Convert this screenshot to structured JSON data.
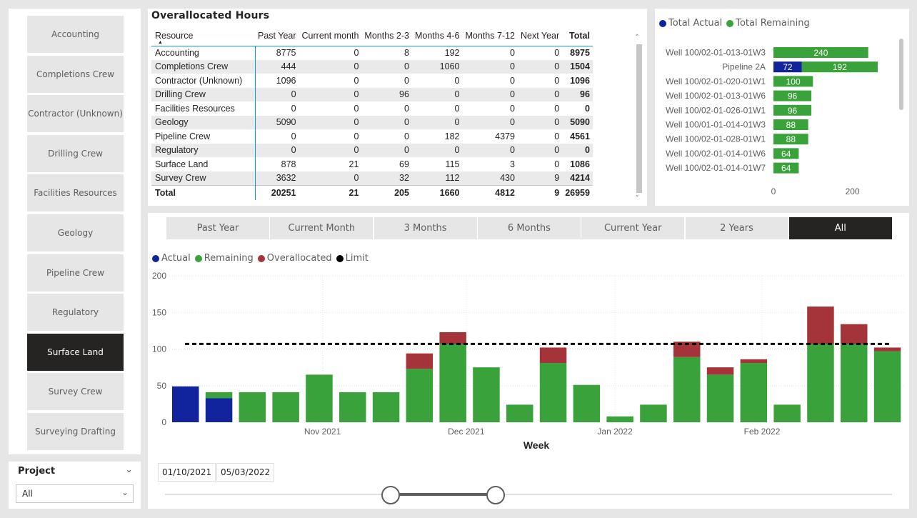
{
  "slicer": {
    "items": [
      "Accounting",
      "Completions Crew",
      "Contractor (Unknown)",
      "Drilling Crew",
      "Facilities Resources",
      "Geology",
      "Pipeline Crew",
      "Regulatory",
      "Surface Land",
      "Survey Crew",
      "Surveying Drafting"
    ],
    "selected": "Surface Land"
  },
  "project": {
    "title": "Project",
    "value": "All",
    "chevron": "chevron-down-icon"
  },
  "table": {
    "title": "Overallocated Hours",
    "columns": [
      "Resource",
      "Past Year",
      "Current month",
      "Months 2-3",
      "Months 4-6",
      "Months 7-12",
      "Next Year",
      "Total"
    ],
    "rows": [
      [
        "Accounting",
        "8775",
        "0",
        "8",
        "192",
        "0",
        "0",
        "8975"
      ],
      [
        "Completions Crew",
        "444",
        "0",
        "0",
        "1060",
        "0",
        "0",
        "1504"
      ],
      [
        "Contractor (Unknown)",
        "1096",
        "0",
        "0",
        "0",
        "0",
        "0",
        "1096"
      ],
      [
        "Drilling Crew",
        "0",
        "0",
        "96",
        "0",
        "0",
        "0",
        "96"
      ],
      [
        "Facilities Resources",
        "0",
        "0",
        "0",
        "0",
        "0",
        "0",
        "0"
      ],
      [
        "Geology",
        "5090",
        "0",
        "0",
        "0",
        "0",
        "0",
        "5090"
      ],
      [
        "Pipeline Crew",
        "0",
        "0",
        "0",
        "182",
        "4379",
        "0",
        "4561"
      ],
      [
        "Regulatory",
        "0",
        "0",
        "0",
        "0",
        "0",
        "0",
        "0"
      ],
      [
        "Surface Land",
        "878",
        "21",
        "69",
        "115",
        "3",
        "0",
        "1086"
      ],
      [
        "Survey Crew",
        "3632",
        "0",
        "32",
        "112",
        "430",
        "9",
        "4214"
      ]
    ],
    "total": [
      "Total",
      "20251",
      "21",
      "205",
      "1660",
      "4812",
      "9",
      "26959"
    ],
    "scroll_up": "˄",
    "scroll_down": "˅"
  },
  "hbar": {
    "legend": [
      {
        "label": "Total Actual",
        "color": "#12239e"
      },
      {
        "label": "Total Remaining",
        "color": "#3aa23a"
      }
    ],
    "chart_data": {
      "type": "bar",
      "orientation": "horizontal",
      "stacked": true,
      "categories": [
        "Well 100/02-01-013-01W3",
        "Pipeline 2A",
        "Well 100/02-01-020-01W1",
        "Well 100/02-01-013-01W6",
        "Well 100/02-01-026-01W1",
        "Well 100/01-01-014-01W3",
        "Well 100/02-01-028-01W1",
        "Well 100/02-01-014-01W6",
        "Well 100/02-01-014-01W7"
      ],
      "series": [
        {
          "name": "Total Actual",
          "values": [
            0,
            72,
            0,
            0,
            0,
            0,
            0,
            0,
            0
          ]
        },
        {
          "name": "Total Remaining",
          "values": [
            240,
            192,
            100,
            96,
            96,
            88,
            88,
            64,
            64
          ]
        }
      ],
      "xticks": [
        0,
        200
      ],
      "xlim": [
        0,
        300
      ]
    }
  },
  "tabs": {
    "items": [
      "Past Year",
      "Current Month",
      "3 Months",
      "6 Months",
      "Current Year",
      "2 Years",
      "All"
    ],
    "selected": "All"
  },
  "column_chart": {
    "legend": [
      {
        "label": "Actual",
        "color": "#12239e"
      },
      {
        "label": "Remaining",
        "color": "#3aa23a"
      },
      {
        "label": "Overallocated",
        "color": "#a4343a"
      },
      {
        "label": "Limit",
        "color": "#000000"
      }
    ],
    "chart_data": {
      "type": "bar",
      "stacked": true,
      "xlabel": "Week",
      "ylim": [
        0,
        200
      ],
      "yticks": [
        0,
        50,
        100,
        150,
        200
      ],
      "xtick_labels": [
        {
          "label": "Nov 2021",
          "after_bar": 4.5
        },
        {
          "label": "Dec 2021",
          "after_bar": 8.8
        },
        {
          "label": "Jan 2022",
          "after_bar": 13.25
        },
        {
          "label": "Feb 2022",
          "after_bar": 17.65
        }
      ],
      "limit": 107,
      "series": [
        {
          "name": "Actual",
          "values": [
            49,
            33,
            0,
            0,
            0,
            0,
            0,
            0,
            0,
            0,
            0,
            0,
            0,
            0,
            0,
            0,
            0,
            0,
            0,
            0,
            0,
            0
          ]
        },
        {
          "name": "Remaining",
          "values": [
            0,
            8,
            41,
            41,
            65,
            41,
            41,
            73,
            107,
            75,
            24,
            81,
            51,
            8,
            24,
            89,
            65,
            81,
            24,
            107,
            107,
            97
          ]
        },
        {
          "name": "Overallocated",
          "values": [
            0,
            0,
            0,
            0,
            0,
            0,
            0,
            21,
            16,
            0,
            0,
            21,
            0,
            0,
            0,
            21,
            10,
            5,
            0,
            51,
            27,
            5
          ]
        }
      ]
    }
  },
  "date_range": {
    "start": "01/10/2021",
    "end": "05/03/2022",
    "slider_start_fraction": 0.31,
    "slider_end_fraction": 0.455
  }
}
